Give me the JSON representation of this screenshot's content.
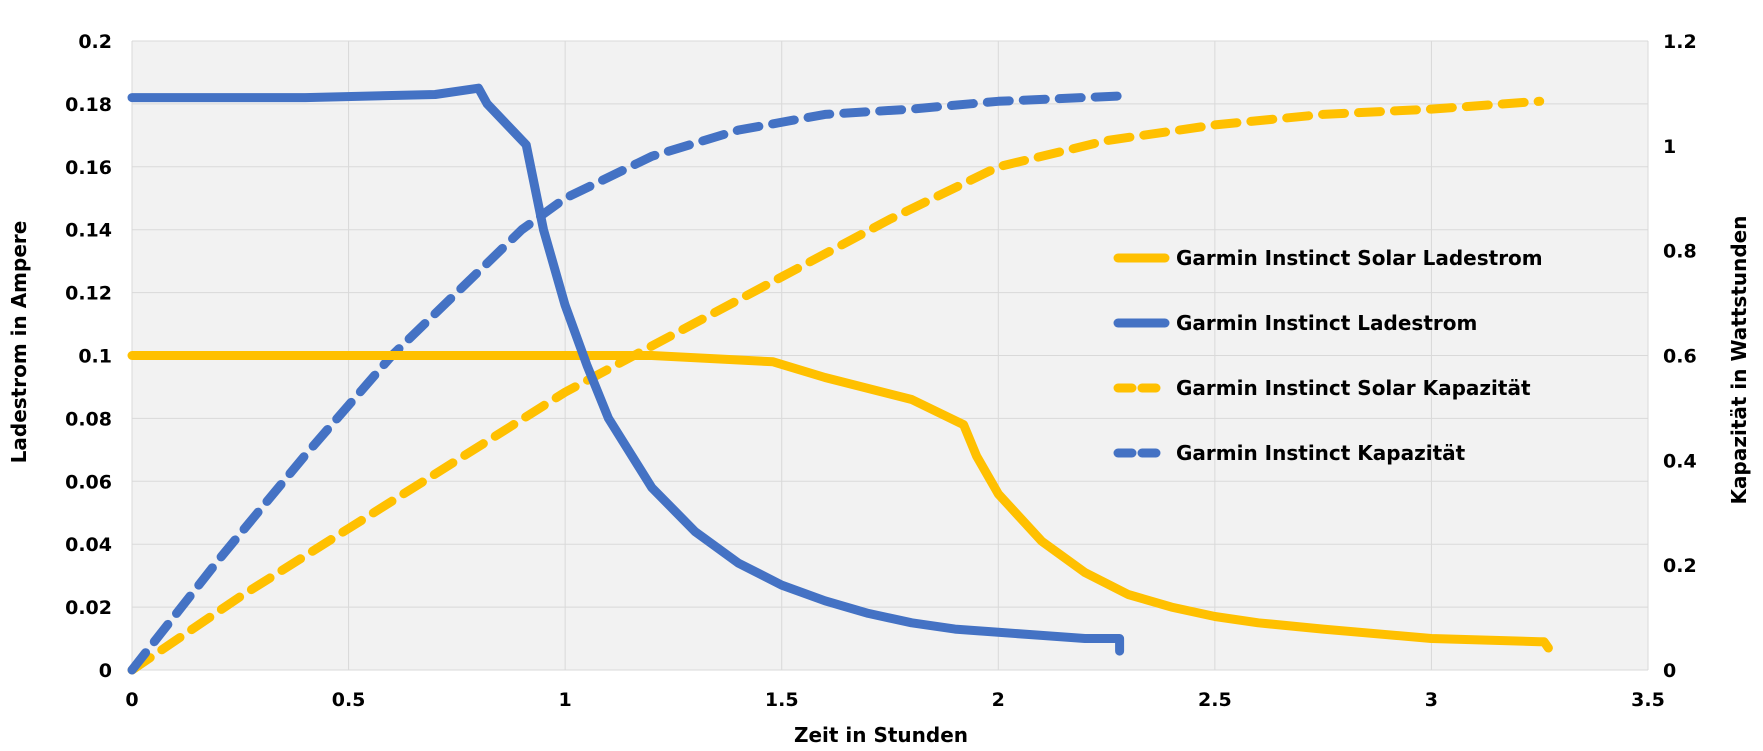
{
  "chart_data": {
    "type": "line",
    "xlabel": "Zeit in Stunden",
    "ylabel": "Ladestrom in Ampere",
    "y2label": "Kapazität in Wattstunden",
    "xlim": [
      0,
      3.5
    ],
    "ylim": [
      0,
      0.2
    ],
    "y2lim": [
      0,
      1.2
    ],
    "x_ticks": [
      "0",
      "0.5",
      "1",
      "1.5",
      "2",
      "2.5",
      "3",
      "3.5"
    ],
    "y_ticks": [
      "0",
      "0.02",
      "0.04",
      "0.06",
      "0.08",
      "0.1",
      "0.12",
      "0.14",
      "0.16",
      "0.18",
      "0.2"
    ],
    "y2_ticks": [
      "0",
      "0.2",
      "0.4",
      "0.6",
      "0.8",
      "1",
      "1.2"
    ],
    "grid": true,
    "legend_position": "right",
    "series": [
      {
        "name": "Garmin Instinct Solar Ladestrom",
        "axis": "left",
        "style": "solid",
        "color": "#FFC000",
        "x": [
          0,
          0.5,
          1.0,
          1.2,
          1.48,
          1.6,
          1.8,
          1.92,
          1.95,
          2.0,
          2.1,
          2.2,
          2.3,
          2.4,
          2.5,
          2.6,
          2.75,
          3.0,
          3.25,
          3.26,
          3.27
        ],
        "y": [
          0.1,
          0.1,
          0.1,
          0.1,
          0.098,
          0.093,
          0.086,
          0.078,
          0.068,
          0.056,
          0.041,
          0.031,
          0.024,
          0.02,
          0.017,
          0.015,
          0.013,
          0.01,
          0.009,
          0.009,
          0.007
        ]
      },
      {
        "name": "Garmin Instinct Ladestrom",
        "axis": "left",
        "style": "solid",
        "color": "#4472C4",
        "x": [
          0,
          0.4,
          0.7,
          0.8,
          0.82,
          0.91,
          0.95,
          1.0,
          1.05,
          1.1,
          1.2,
          1.3,
          1.4,
          1.5,
          1.6,
          1.7,
          1.8,
          1.9,
          2.0,
          2.1,
          2.2,
          2.28,
          2.28
        ],
        "y": [
          0.182,
          0.182,
          0.183,
          0.185,
          0.18,
          0.167,
          0.14,
          0.116,
          0.097,
          0.08,
          0.058,
          0.044,
          0.034,
          0.027,
          0.022,
          0.018,
          0.015,
          0.013,
          0.012,
          0.011,
          0.01,
          0.01,
          0.006
        ]
      },
      {
        "name": "Garmin Instinct Solar Kapazität",
        "axis": "right",
        "style": "dashed",
        "color": "#FFC000",
        "x": [
          0,
          0.25,
          0.5,
          0.75,
          1.0,
          1.25,
          1.5,
          1.75,
          2.0,
          2.25,
          2.5,
          2.75,
          3.0,
          3.25
        ],
        "y": [
          0,
          0.14,
          0.27,
          0.4,
          0.53,
          0.64,
          0.75,
          0.86,
          0.96,
          1.01,
          1.04,
          1.06,
          1.07,
          1.085
        ]
      },
      {
        "name": "Garmin Instinct Kapazität",
        "axis": "right",
        "style": "dashed",
        "color": "#4472C4",
        "x": [
          0,
          0.2,
          0.4,
          0.6,
          0.8,
          0.9,
          1.0,
          1.2,
          1.4,
          1.6,
          1.8,
          2.0,
          2.28
        ],
        "y": [
          0,
          0.21,
          0.41,
          0.6,
          0.76,
          0.84,
          0.9,
          0.98,
          1.03,
          1.06,
          1.07,
          1.085,
          1.095
        ]
      }
    ]
  }
}
